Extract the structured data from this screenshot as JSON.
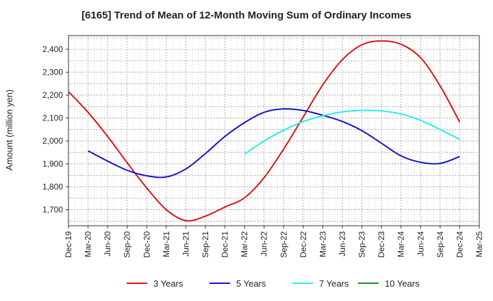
{
  "chart_data": {
    "type": "line",
    "title": "[6165]  Trend of Mean of 12-Month Moving Sum of Ordinary Incomes",
    "xlabel": "",
    "ylabel": "Amount (million yen)",
    "ylim": [
      1630,
      2460
    ],
    "yticks": [
      1700,
      1800,
      1900,
      2000,
      2100,
      2200,
      2300,
      2400
    ],
    "ytick_labels": [
      "1,700",
      "1,800",
      "1,900",
      "2,000",
      "2,100",
      "2,200",
      "2,300",
      "2,400"
    ],
    "x_labels": [
      "Dec-19",
      "Mar-20",
      "Jun-20",
      "Sep-20",
      "Dec-20",
      "Mar-21",
      "Jun-21",
      "Sep-21",
      "Dec-21",
      "Mar-22",
      "Jun-22",
      "Sep-22",
      "Dec-22",
      "Mar-23",
      "Jun-23",
      "Sep-23",
      "Dec-23",
      "Mar-24",
      "Jun-24",
      "Sep-24",
      "Dec-24",
      "Mar-25"
    ],
    "grid": true,
    "legend_position": "bottom",
    "series": [
      {
        "name": "3 Years",
        "color": "#dd1111",
        "points": [
          [
            0,
            2215
          ],
          [
            1,
            2125
          ],
          [
            2,
            2020
          ],
          [
            3,
            1905
          ],
          [
            4,
            1795
          ],
          [
            5,
            1700
          ],
          [
            6,
            1652
          ],
          [
            7,
            1672
          ],
          [
            8,
            1712
          ],
          [
            9,
            1752
          ],
          [
            10,
            1840
          ],
          [
            11,
            1965
          ],
          [
            12,
            2105
          ],
          [
            13,
            2245
          ],
          [
            14,
            2355
          ],
          [
            15,
            2420
          ],
          [
            16,
            2437
          ],
          [
            17,
            2422
          ],
          [
            18,
            2363
          ],
          [
            19,
            2240
          ],
          [
            20,
            2082
          ]
        ]
      },
      {
        "name": "5 Years",
        "color": "#1111cc",
        "points": [
          [
            1,
            1957
          ],
          [
            2,
            1912
          ],
          [
            3,
            1872
          ],
          [
            4,
            1848
          ],
          [
            5,
            1843
          ],
          [
            6,
            1878
          ],
          [
            7,
            1945
          ],
          [
            8,
            2020
          ],
          [
            9,
            2080
          ],
          [
            10,
            2125
          ],
          [
            11,
            2140
          ],
          [
            12,
            2133
          ],
          [
            13,
            2112
          ],
          [
            14,
            2085
          ],
          [
            15,
            2045
          ],
          [
            16,
            1990
          ],
          [
            17,
            1935
          ],
          [
            18,
            1907
          ],
          [
            19,
            1902
          ],
          [
            20,
            1932
          ]
        ]
      },
      {
        "name": "7 Years",
        "color": "#22eeee",
        "points": [
          [
            9,
            1943
          ],
          [
            10,
            2000
          ],
          [
            11,
            2047
          ],
          [
            12,
            2085
          ],
          [
            13,
            2110
          ],
          [
            14,
            2127
          ],
          [
            15,
            2133
          ],
          [
            16,
            2131
          ],
          [
            17,
            2118
          ],
          [
            18,
            2090
          ],
          [
            19,
            2050
          ],
          [
            20,
            2007
          ]
        ]
      },
      {
        "name": "10 Years",
        "color": "#228822",
        "points": []
      }
    ]
  }
}
